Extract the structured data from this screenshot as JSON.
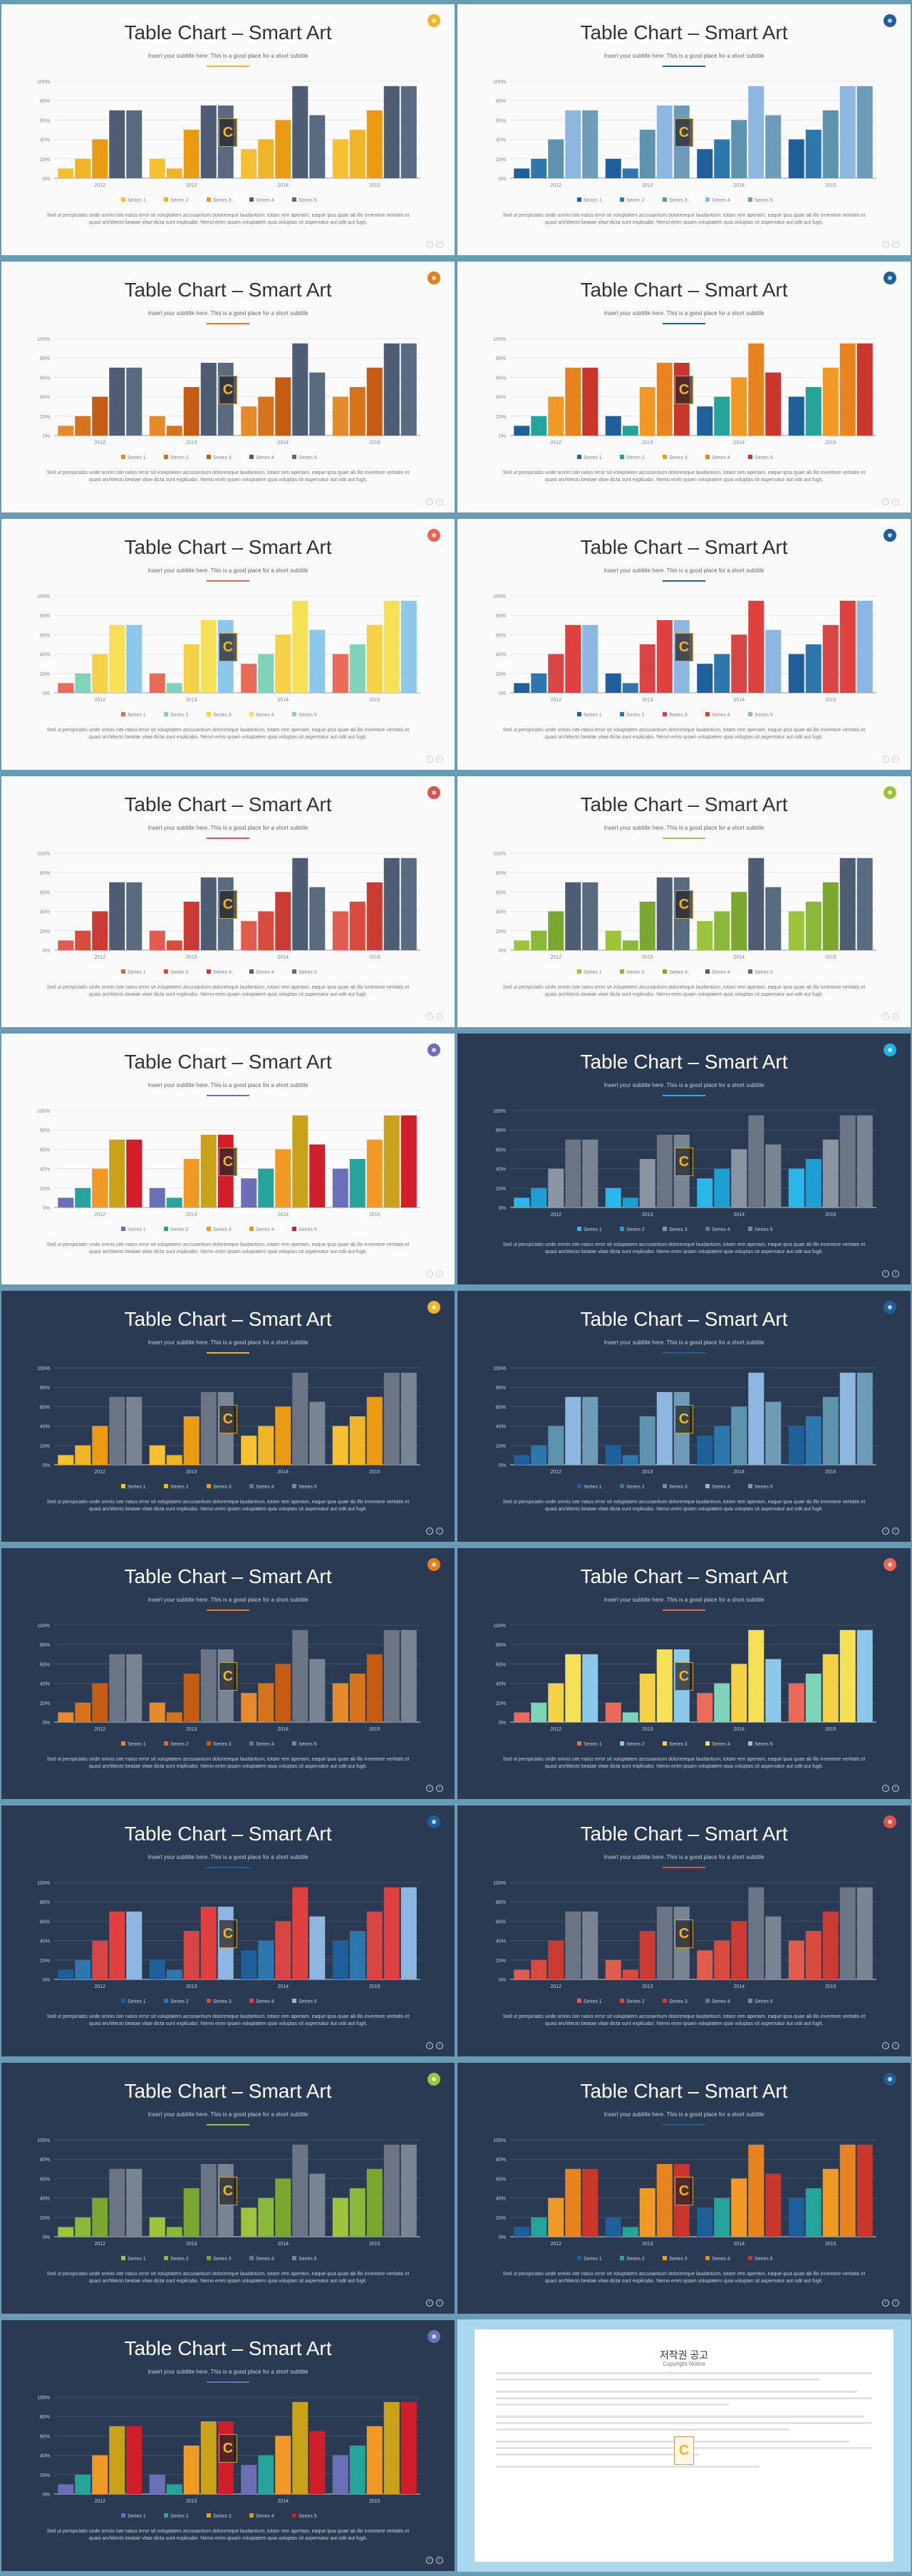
{
  "slide": {
    "title": "Table Chart – Smart Art",
    "subtitle": "Insert your subtitle here. This is a good place for a short subtitle",
    "body": "Sed ut perspiciatis unde omnis iste natus error sit voluptatem accusantium doloremque laudantium, totam rem aperiam, eaque ipsa quae ab illo inventore veritatis et quasi architecto beatae vitae dicta sunt explicabo. Nemo enim ipsam voluptatem quia voluptas sit aspernatur aut odit aut fugit.",
    "badge_letter": "C"
  },
  "chart_data": {
    "type": "bar",
    "categories": [
      "2012",
      "2013",
      "2014",
      "2015"
    ],
    "series": [
      {
        "name": "Series 1",
        "values": [
          10,
          20,
          30,
          40
        ]
      },
      {
        "name": "Series 2",
        "values": [
          20,
          10,
          40,
          50
        ]
      },
      {
        "name": "Series 3",
        "values": [
          40,
          50,
          60,
          70
        ]
      },
      {
        "name": "Series 4",
        "values": [
          70,
          75,
          95,
          95
        ]
      },
      {
        "name": "Series 5",
        "values": [
          70,
          75,
          65,
          95
        ]
      }
    ],
    "yticks": [
      "0%",
      "20%",
      "40%",
      "60%",
      "80%",
      "100%"
    ],
    "ylim": [
      0,
      100
    ],
    "grid": true,
    "legend": "bottom"
  },
  "slides": [
    {
      "theme": "light",
      "dot": "#f0b429",
      "palette": [
        "#f5c131",
        "#f0b429",
        "#e99b14",
        "#4e5d74",
        "#5a6a80"
      ]
    },
    {
      "theme": "light",
      "dot": "#1f5f9a",
      "palette": [
        "#1f5f9a",
        "#2e77ad",
        "#5d93ad",
        "#8db6e0",
        "#6e9bb8"
      ]
    },
    {
      "theme": "light",
      "dot": "#e57c1e",
      "palette": [
        "#e68b2c",
        "#d8731d",
        "#c45c14",
        "#4e5d74",
        "#5a6a80"
      ]
    },
    {
      "theme": "light",
      "dot": "#1f5f9a",
      "palette": [
        "#1f5f9a",
        "#26a39a",
        "#f09a25",
        "#e9831f",
        "#c9362b"
      ]
    },
    {
      "theme": "light",
      "dot": "#e8664f",
      "palette": [
        "#ea6b5a",
        "#7ed3b9",
        "#f5d147",
        "#f5e057",
        "#8dc8ea"
      ]
    },
    {
      "theme": "light",
      "dot": "#1f5f9a",
      "palette": [
        "#1f5f9a",
        "#2e77ad",
        "#d84545",
        "#e04040",
        "#8db6e0"
      ]
    },
    {
      "theme": "light",
      "dot": "#d9534f",
      "palette": [
        "#e05c4f",
        "#d94a3f",
        "#c93b33",
        "#4e5d74",
        "#5a6a80"
      ]
    },
    {
      "theme": "light",
      "dot": "#9dc43b",
      "palette": [
        "#9dc43b",
        "#8ab83a",
        "#7ba630",
        "#4e5d74",
        "#5a6a80"
      ]
    },
    {
      "theme": "light",
      "dot": "#6b6fb5",
      "palette": [
        "#6b6fb5",
        "#26a39a",
        "#f09a25",
        "#c9a11a",
        "#d01f2a"
      ]
    },
    {
      "theme": "dark",
      "dot": "#1fb3e6",
      "palette": [
        "#2bb7ea",
        "#1d9fd4",
        "#8a94a3",
        "#6b7585",
        "#7a8594"
      ]
    },
    {
      "theme": "dark",
      "dot": "#f0b429",
      "palette": [
        "#f5c131",
        "#f0b429",
        "#e99b14",
        "#6b7585",
        "#7a8594"
      ]
    },
    {
      "theme": "dark",
      "dot": "#1f5f9a",
      "palette": [
        "#1f5f9a",
        "#2e77ad",
        "#5d93ad",
        "#8db6e0",
        "#6e9bb8"
      ]
    },
    {
      "theme": "dark",
      "dot": "#e57c1e",
      "palette": [
        "#e68b2c",
        "#d8731d",
        "#c45c14",
        "#6b7585",
        "#7a8594"
      ]
    },
    {
      "theme": "dark",
      "dot": "#e8664f",
      "palette": [
        "#ea6b5a",
        "#7ed3b9",
        "#f5d147",
        "#f5e057",
        "#8dc8ea"
      ]
    },
    {
      "theme": "dark",
      "dot": "#1f5f9a",
      "palette": [
        "#1f5f9a",
        "#2e77ad",
        "#d84545",
        "#e04040",
        "#8db6e0"
      ]
    },
    {
      "theme": "dark",
      "dot": "#d9534f",
      "palette": [
        "#e05c4f",
        "#d94a3f",
        "#c93b33",
        "#6b7585",
        "#7a8594"
      ]
    },
    {
      "theme": "dark",
      "dot": "#9dc43b",
      "palette": [
        "#9dc43b",
        "#8ab83a",
        "#7ba630",
        "#6b7585",
        "#7a8594"
      ]
    },
    {
      "theme": "dark",
      "dot": "#1f5f9a",
      "palette": [
        "#1f5f9a",
        "#26a39a",
        "#f09a25",
        "#e9831f",
        "#c9362b"
      ]
    },
    {
      "theme": "dark",
      "dot": "#6b6fb5",
      "palette": [
        "#6b6fb5",
        "#26a39a",
        "#f09a25",
        "#c9a11a",
        "#d01f2a"
      ]
    }
  ],
  "copyright": {
    "title": "저작권 공고",
    "subtitle": "Copyright Notice",
    "badge_letter": "C"
  }
}
